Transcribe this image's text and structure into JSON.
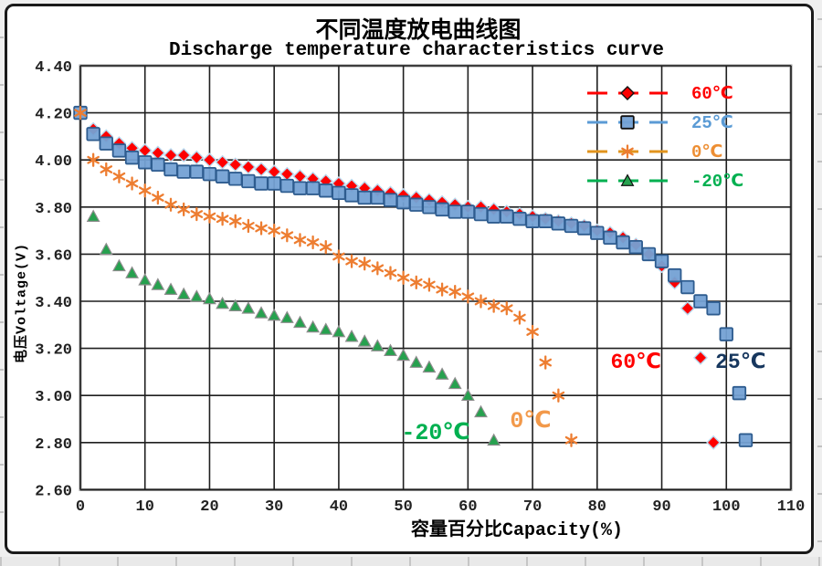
{
  "title": "不同温度放电曲线图",
  "subtitle": "Discharge temperature characteristics curve",
  "chart_data": {
    "type": "scatter",
    "title": "不同温度放电曲线图",
    "subtitle": "Discharge temperature characteristics curve",
    "xlabel": "容量百分比Capacity(%)",
    "ylabel": "电压Voltage(V)",
    "xlim": [
      0,
      110
    ],
    "ylim": [
      2.6,
      4.4
    ],
    "grid": true,
    "legend_position": "top-right-inside",
    "x_ticks": [
      "0",
      "10",
      "20",
      "30",
      "40",
      "50",
      "60",
      "70",
      "80",
      "90",
      "100",
      "110"
    ],
    "y_ticks": [
      "4.40",
      "4.20",
      "4.00",
      "3.80",
      "3.60",
      "3.40",
      "3.20",
      "3.00",
      "2.80",
      "2.60"
    ],
    "series": [
      {
        "id": "60c",
        "name": "60℃",
        "marker": "diamond",
        "color": "#FE0000",
        "marker_stroke": "#B8D9EE",
        "label_color": "#FF0000",
        "line_color": "#FF0000",
        "points": [
          [
            2,
            4.13
          ],
          [
            4,
            4.1
          ],
          [
            6,
            4.07
          ],
          [
            8,
            4.05
          ],
          [
            10,
            4.04
          ],
          [
            12,
            4.03
          ],
          [
            14,
            4.02
          ],
          [
            16,
            4.02
          ],
          [
            18,
            4.01
          ],
          [
            20,
            4.0
          ],
          [
            22,
            3.99
          ],
          [
            24,
            3.98
          ],
          [
            26,
            3.97
          ],
          [
            28,
            3.96
          ],
          [
            30,
            3.95
          ],
          [
            32,
            3.94
          ],
          [
            34,
            3.93
          ],
          [
            36,
            3.92
          ],
          [
            38,
            3.91
          ],
          [
            40,
            3.9
          ],
          [
            42,
            3.89
          ],
          [
            44,
            3.88
          ],
          [
            46,
            3.87
          ],
          [
            48,
            3.86
          ],
          [
            50,
            3.85
          ],
          [
            52,
            3.84
          ],
          [
            54,
            3.83
          ],
          [
            56,
            3.82
          ],
          [
            58,
            3.81
          ],
          [
            60,
            3.8
          ],
          [
            62,
            3.8
          ],
          [
            64,
            3.79
          ],
          [
            66,
            3.78
          ],
          [
            68,
            3.77
          ],
          [
            70,
            3.76
          ],
          [
            72,
            3.75
          ],
          [
            74,
            3.74
          ],
          [
            76,
            3.73
          ],
          [
            78,
            3.72
          ],
          [
            80,
            3.7
          ],
          [
            82,
            3.69
          ],
          [
            84,
            3.67
          ],
          [
            86,
            3.64
          ],
          [
            88,
            3.6
          ],
          [
            90,
            3.55
          ],
          [
            92,
            3.48
          ],
          [
            94,
            3.37
          ],
          [
            96,
            3.16
          ],
          [
            98,
            2.8
          ]
        ]
      },
      {
        "id": "25c",
        "name": "25℃",
        "marker": "square",
        "color": "#74A1D4",
        "marker_stroke": "#2E5C8F",
        "label_color": "#5B9BD5",
        "line_color": "#5B9BD5",
        "points": [
          [
            0,
            4.2
          ],
          [
            2,
            4.11
          ],
          [
            4,
            4.07
          ],
          [
            6,
            4.04
          ],
          [
            8,
            4.01
          ],
          [
            10,
            3.99
          ],
          [
            12,
            3.98
          ],
          [
            14,
            3.96
          ],
          [
            16,
            3.95
          ],
          [
            18,
            3.95
          ],
          [
            20,
            3.94
          ],
          [
            22,
            3.93
          ],
          [
            24,
            3.92
          ],
          [
            26,
            3.91
          ],
          [
            28,
            3.9
          ],
          [
            30,
            3.9
          ],
          [
            32,
            3.89
          ],
          [
            34,
            3.88
          ],
          [
            36,
            3.88
          ],
          [
            38,
            3.87
          ],
          [
            40,
            3.86
          ],
          [
            42,
            3.85
          ],
          [
            44,
            3.84
          ],
          [
            46,
            3.84
          ],
          [
            48,
            3.83
          ],
          [
            50,
            3.82
          ],
          [
            52,
            3.81
          ],
          [
            54,
            3.8
          ],
          [
            56,
            3.79
          ],
          [
            58,
            3.78
          ],
          [
            60,
            3.78
          ],
          [
            62,
            3.77
          ],
          [
            64,
            3.76
          ],
          [
            66,
            3.76
          ],
          [
            68,
            3.75
          ],
          [
            70,
            3.74
          ],
          [
            72,
            3.74
          ],
          [
            74,
            3.73
          ],
          [
            76,
            3.72
          ],
          [
            78,
            3.71
          ],
          [
            80,
            3.69
          ],
          [
            82,
            3.67
          ],
          [
            84,
            3.65
          ],
          [
            86,
            3.63
          ],
          [
            88,
            3.6
          ],
          [
            90,
            3.57
          ],
          [
            92,
            3.51
          ],
          [
            94,
            3.46
          ],
          [
            96,
            3.4
          ],
          [
            98,
            3.37
          ],
          [
            100,
            3.26
          ],
          [
            102,
            3.01
          ],
          [
            103,
            2.81
          ]
        ]
      },
      {
        "id": "0c",
        "name": "0℃",
        "marker": "asterisk",
        "color": "#ED7D31",
        "marker_stroke": "#ED7D31",
        "label_color": "#ED8E33",
        "line_color": "#E2941E",
        "points": [
          [
            0,
            4.2
          ],
          [
            2,
            4.0
          ],
          [
            4,
            3.96
          ],
          [
            6,
            3.93
          ],
          [
            8,
            3.9
          ],
          [
            10,
            3.87
          ],
          [
            12,
            3.84
          ],
          [
            14,
            3.81
          ],
          [
            16,
            3.79
          ],
          [
            18,
            3.77
          ],
          [
            20,
            3.76
          ],
          [
            22,
            3.75
          ],
          [
            24,
            3.74
          ],
          [
            26,
            3.72
          ],
          [
            28,
            3.71
          ],
          [
            30,
            3.7
          ],
          [
            32,
            3.68
          ],
          [
            34,
            3.66
          ],
          [
            36,
            3.65
          ],
          [
            38,
            3.63
          ],
          [
            40,
            3.59
          ],
          [
            42,
            3.57
          ],
          [
            44,
            3.56
          ],
          [
            46,
            3.54
          ],
          [
            48,
            3.52
          ],
          [
            50,
            3.5
          ],
          [
            52,
            3.48
          ],
          [
            54,
            3.47
          ],
          [
            56,
            3.45
          ],
          [
            58,
            3.44
          ],
          [
            60,
            3.42
          ],
          [
            62,
            3.4
          ],
          [
            64,
            3.38
          ],
          [
            66,
            3.37
          ],
          [
            68,
            3.33
          ],
          [
            70,
            3.27
          ],
          [
            72,
            3.14
          ],
          [
            74,
            3.0
          ],
          [
            76,
            2.81
          ]
        ]
      },
      {
        "id": "-20c",
        "name": "-20℃",
        "marker": "triangle",
        "color": "#26A14E",
        "marker_stroke": "#8C8C8C",
        "label_color": "#00B050",
        "line_color": "#00B050",
        "points": [
          [
            2,
            3.76
          ],
          [
            4,
            3.62
          ],
          [
            6,
            3.55
          ],
          [
            8,
            3.52
          ],
          [
            10,
            3.49
          ],
          [
            12,
            3.47
          ],
          [
            14,
            3.45
          ],
          [
            16,
            3.43
          ],
          [
            18,
            3.42
          ],
          [
            20,
            3.41
          ],
          [
            22,
            3.39
          ],
          [
            24,
            3.38
          ],
          [
            26,
            3.37
          ],
          [
            28,
            3.35
          ],
          [
            30,
            3.34
          ],
          [
            32,
            3.33
          ],
          [
            34,
            3.31
          ],
          [
            36,
            3.29
          ],
          [
            38,
            3.28
          ],
          [
            40,
            3.27
          ],
          [
            42,
            3.25
          ],
          [
            44,
            3.23
          ],
          [
            46,
            3.21
          ],
          [
            48,
            3.19
          ],
          [
            50,
            3.17
          ],
          [
            52,
            3.14
          ],
          [
            54,
            3.12
          ],
          [
            56,
            3.09
          ],
          [
            58,
            3.05
          ],
          [
            60,
            3.0
          ],
          [
            62,
            2.93
          ],
          [
            64,
            2.81
          ]
        ]
      }
    ],
    "annotations": [
      {
        "text": "60℃",
        "x": 86.0,
        "y": 3.15,
        "color": "#FF0000",
        "size": 23
      },
      {
        "text": "25℃",
        "x": 102.2,
        "y": 3.15,
        "color": "#17375E",
        "size": 23
      },
      {
        "text": "0℃",
        "x": 69.7,
        "y": 2.9,
        "color": "#F2994A",
        "size": 25
      },
      {
        "text": "-20℃",
        "x": 55.0,
        "y": 2.85,
        "color": "#00B050",
        "size": 25
      }
    ]
  }
}
